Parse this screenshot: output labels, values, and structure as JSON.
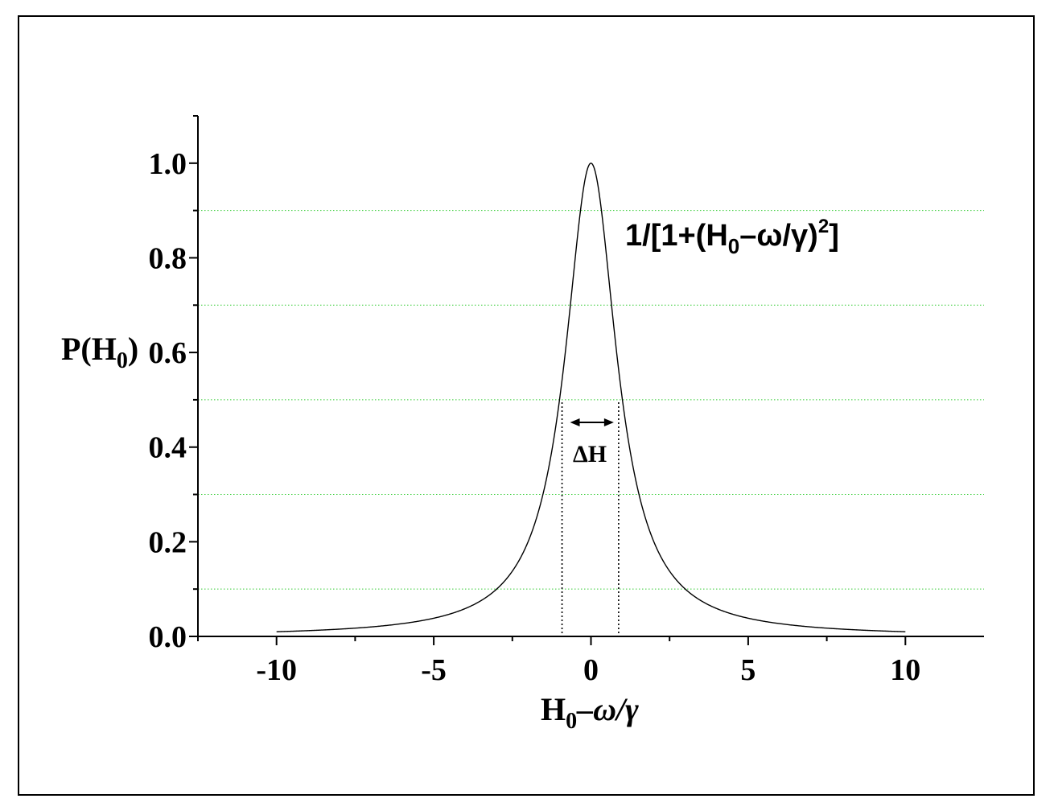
{
  "chart_data": {
    "type": "line",
    "xlabel": {
      "base": "H",
      "sub": "0",
      "rest": "–ω/γ"
    },
    "ylabel": {
      "base": "P(H",
      "sub": "0",
      "rest": ")"
    },
    "xlim": [
      -12.5,
      12.5
    ],
    "ylim": [
      0.0,
      1.1
    ],
    "x_ticks": [
      {
        "value": -10,
        "label": "-10"
      },
      {
        "value": -5,
        "label": "-5"
      },
      {
        "value": 0,
        "label": "0"
      },
      {
        "value": 5,
        "label": "5"
      },
      {
        "value": 10,
        "label": "10"
      }
    ],
    "y_ticks": [
      {
        "value": 0.0,
        "label": "0.0"
      },
      {
        "value": 0.2,
        "label": "0.2"
      },
      {
        "value": 0.4,
        "label": "0.4"
      },
      {
        "value": 0.6,
        "label": "0.6"
      },
      {
        "value": 0.8,
        "label": "0.8"
      },
      {
        "value": 1.0,
        "label": "1.0"
      }
    ],
    "gridlines_y": [
      0.1,
      0.3,
      0.5,
      0.7,
      0.9
    ],
    "grid_color": "#33cc33",
    "series": [
      {
        "function": "lorentzian",
        "x_range": [
          -10,
          10
        ],
        "peak": 1.0,
        "center": 0,
        "half_width": 1,
        "color": "#000000"
      }
    ],
    "annotations": {
      "formula": {
        "pre": "1/[1+(H",
        "sub": "0",
        "mid": "–ω/γ)",
        "sup": "2",
        "post": "]"
      },
      "width_label": "ΔH",
      "width_markers_x": [
        -0.92,
        0.88
      ]
    }
  }
}
